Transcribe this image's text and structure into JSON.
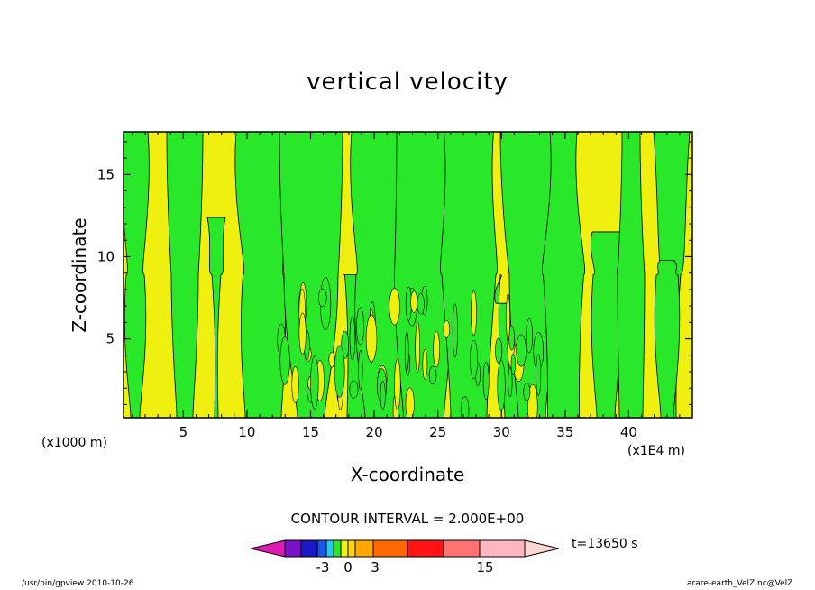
{
  "chart_data": {
    "type": "heatmap",
    "title": "vertical velocity",
    "xlabel": "X-coordinate",
    "ylabel": "Z-coordinate",
    "x_unit_note": "(x1000 m)",
    "x_scale_note": "(x1E4 m)",
    "x_ticks": [
      5,
      10,
      15,
      20,
      25,
      30,
      35,
      40
    ],
    "y_ticks": [
      5,
      10,
      15
    ],
    "xlim": [
      0.3,
      45
    ],
    "ylim": [
      0.2,
      17.6
    ],
    "contour_interval_text": "CONTOUR INTERVAL = 2.000E+00",
    "time_label": "t=13650 s",
    "colorbar": {
      "colors": [
        "#e01ab4",
        "#7a11c4",
        "#1a18c9",
        "#1a55e8",
        "#26c9f0",
        "#29e829",
        "#f0f010",
        "#ffd600",
        "#ffa800",
        "#ff6a00",
        "#ff1515",
        "#ff7070",
        "#ffb6bf",
        "#ffd8d0"
      ],
      "labels": [
        "-3",
        "0",
        "3",
        "15"
      ]
    },
    "grid": false
  },
  "footer": {
    "left": "/usr/bin/gpview   2010-10-26",
    "right": "arare-earth_VelZ.nc@VelZ"
  }
}
